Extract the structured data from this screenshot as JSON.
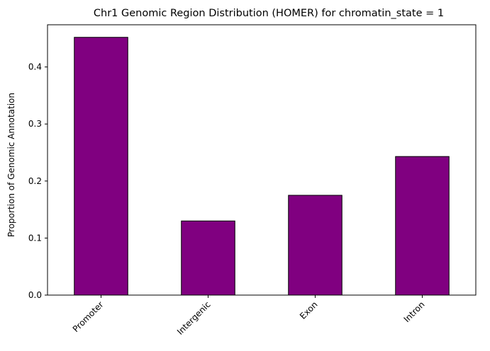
{
  "chart_data": {
    "type": "bar",
    "title": "Chr1 Genomic Region Distribution (HOMER) for chromatin_state = 1",
    "xlabel": "",
    "ylabel": "Proportion of Genomic Annotation",
    "categories": [
      "Promoter",
      "Intergenic",
      "Exon",
      "Intron"
    ],
    "values": [
      0.452,
      0.13,
      0.175,
      0.243
    ],
    "ylim": [
      0,
      0.474
    ],
    "yticks": [
      0.0,
      0.1,
      0.2,
      0.3,
      0.4
    ],
    "ytick_labels": [
      "0.0",
      "0.1",
      "0.2",
      "0.3",
      "0.4"
    ],
    "bar_color": "#800080",
    "edge_color": "#000000",
    "grid": false,
    "legend": "none",
    "xtick_rotation": 45
  }
}
